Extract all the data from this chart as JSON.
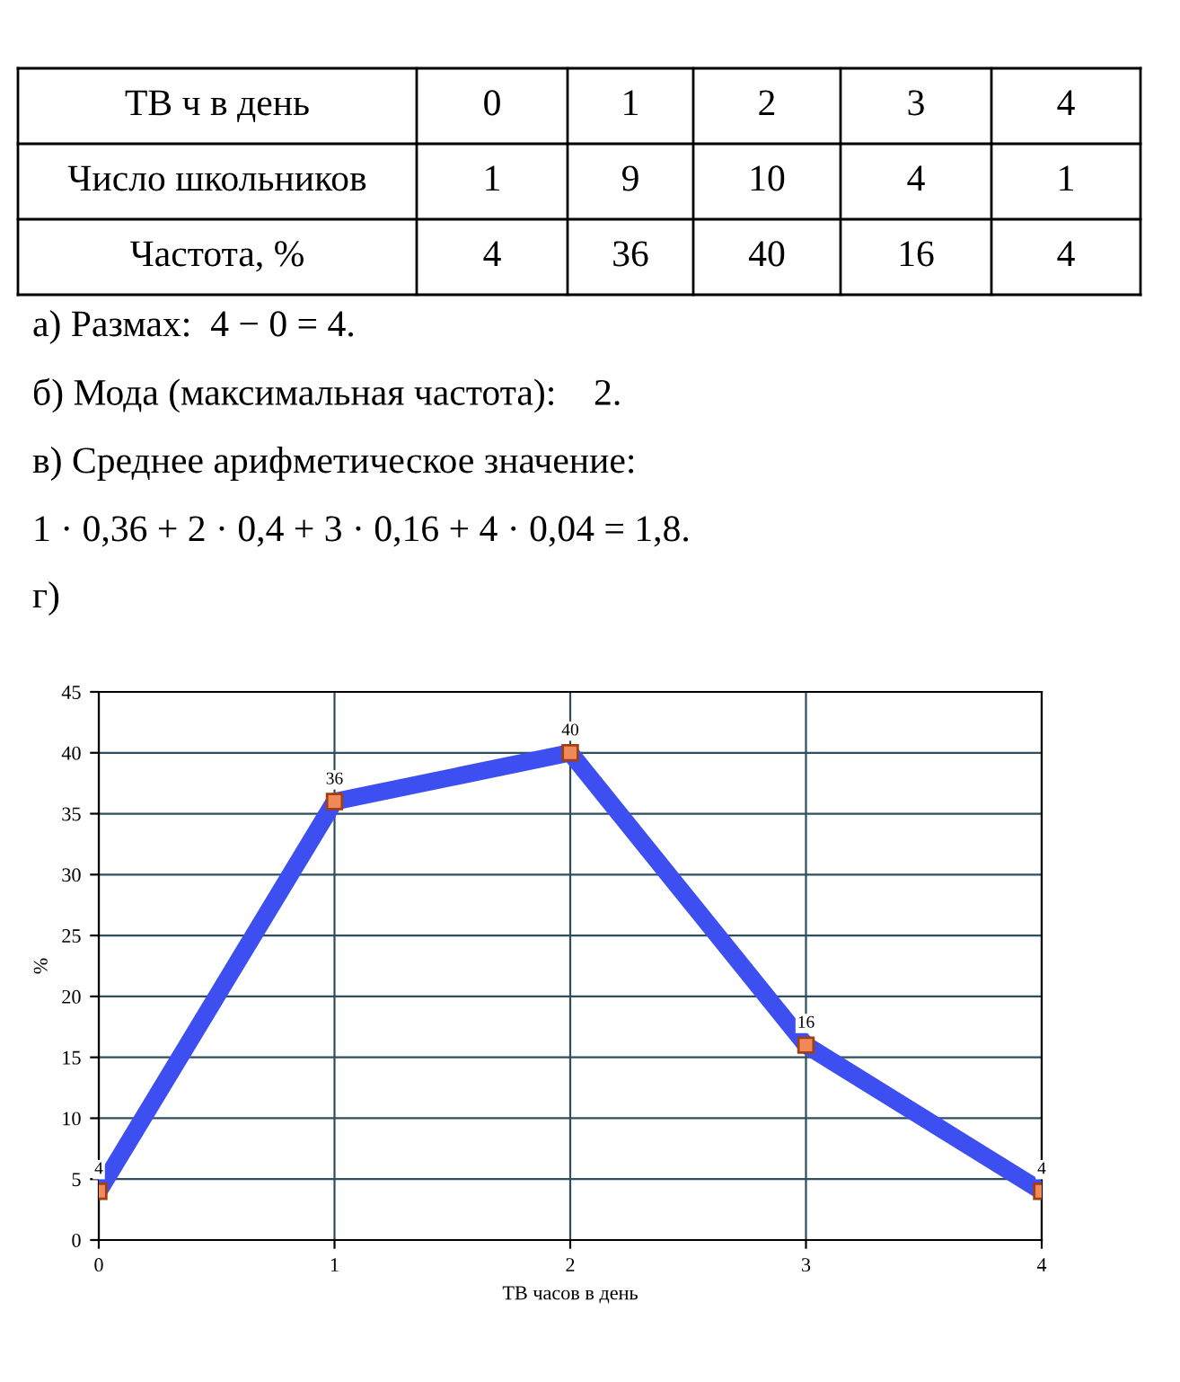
{
  "chart_data": {
    "type": "line",
    "xlabel": "ТВ часов в день",
    "ylabel": "%",
    "x": [
      0,
      1,
      2,
      3,
      4
    ],
    "values": [
      4,
      36,
      40,
      16,
      4
    ],
    "color": "#3d4ff0",
    "marker": "square",
    "line_style": "solid",
    "data_labels": true,
    "xlim": [
      0,
      4
    ],
    "xticks": [
      0,
      1,
      2,
      3,
      4
    ],
    "ylim": [
      0,
      45
    ],
    "yticks": [
      0,
      5,
      10,
      15,
      20,
      25,
      30,
      35,
      40,
      45
    ],
    "grid": true,
    "annotations": [
      "ТВ ч в день",
      "0",
      "1",
      "2",
      "3",
      "4",
      "Число школьников",
      "1",
      "9",
      "10",
      "4",
      "1",
      "Частота, %",
      "4",
      "36",
      "40",
      "16",
      "4",
      "а) Размах:  4 − 0 = 4.",
      "б) Мода (максимальная частота):    2.",
      "в) Среднее арифметическое значение:",
      "1 · 0,36 + 2 · 0,4 + 3 · 0,16 + 4 · 0,04 = 1,8.",
      "г)"
    ]
  }
}
